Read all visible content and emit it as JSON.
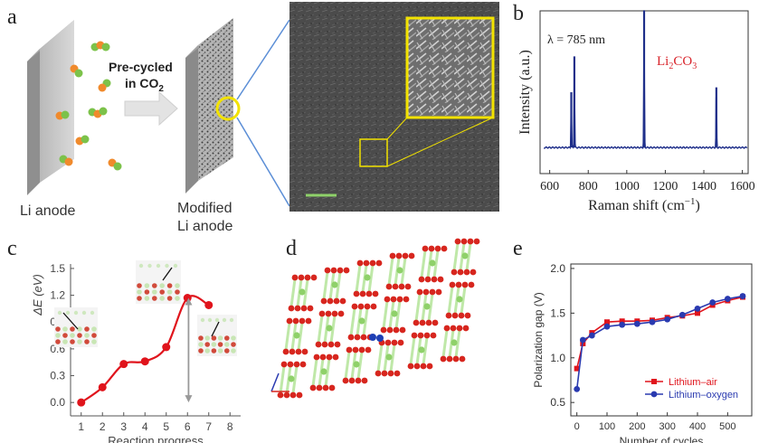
{
  "panel_labels": {
    "a": "a",
    "b": "b",
    "c": "c",
    "d": "d",
    "e": "e"
  },
  "panel_a": {
    "arrow_label_line1": "Pre-cycled",
    "arrow_label_line2": "in CO",
    "arrow_label_sub": "2",
    "left_label": "Li anode",
    "right_label_line1": "Modified",
    "right_label_line2": "Li anode",
    "colors": {
      "particle_orange": "#f08a2c",
      "particle_green": "#7cc24a",
      "highlight": "#f2e200",
      "scalebar": "#8fd16a",
      "connector": "#5b8ed6"
    }
  },
  "chart_data": [
    {
      "type": "line",
      "panel": "b",
      "annotation": "λ = 785 nm",
      "peak_label": "Li2CO3",
      "peak_label_main": "Li",
      "peak_label_sub1": "2",
      "peak_label_mid": "CO",
      "peak_label_sub2": "3",
      "xlabel": "Raman shift (cm",
      "xlabel_sup": "−1",
      "xlabel_end": ")",
      "ylabel": "Intensity (a.u.)",
      "xlim": [
        550,
        1630
      ],
      "ylim": [
        0,
        1
      ],
      "xticks": [
        600,
        800,
        1000,
        1200,
        1400,
        1600
      ],
      "baseline": 0.16,
      "peaks": [
        {
          "x": 712,
          "height": 0.5
        },
        {
          "x": 728,
          "height": 0.72
        },
        {
          "x": 1090,
          "height": 1.0
        },
        {
          "x": 1465,
          "height": 0.53
        }
      ],
      "colors": {
        "line": "#1f2f8a",
        "peak_label": "#d8232a"
      }
    },
    {
      "type": "line",
      "panel": "c",
      "ylabel": "ΔE (eV)",
      "xlabel": "Reaction progress",
      "xlim": [
        0.5,
        8.5
      ],
      "ylim": [
        -0.15,
        1.55
      ],
      "xticks": [
        1,
        2,
        3,
        4,
        5,
        6,
        7,
        8
      ],
      "yticks": [
        "0.0",
        "0.3",
        "0.6",
        "0.9",
        "1.2",
        "1.5"
      ],
      "x": [
        1,
        2,
        3,
        4,
        5,
        6,
        7
      ],
      "y": [
        0.0,
        0.17,
        0.43,
        0.46,
        0.62,
        1.17,
        1.09
      ],
      "barrier_arrow": {
        "x": 6.05,
        "from": 0.0,
        "to": 1.17
      },
      "colors": {
        "line": "#e0141c",
        "arrow": "#999999"
      }
    },
    {
      "type": "line",
      "panel": "e",
      "ylabel": "Polarization gap (V)",
      "xlabel": "Number of cycles",
      "xlim": [
        -20,
        580
      ],
      "ylim": [
        0.35,
        2.05
      ],
      "xticks": [
        0,
        100,
        200,
        300,
        400,
        500
      ],
      "yticks": [
        "0.5",
        "1.0",
        "1.5",
        "2.0"
      ],
      "x": [
        0,
        20,
        50,
        100,
        150,
        200,
        250,
        300,
        350,
        400,
        450,
        500,
        550
      ],
      "series": [
        {
          "name": "Lithium–air",
          "values": [
            0.88,
            1.16,
            1.28,
            1.4,
            1.41,
            1.41,
            1.42,
            1.45,
            1.47,
            1.5,
            1.59,
            1.64,
            1.68
          ]
        },
        {
          "name": "Lithium–oxygen",
          "values": [
            0.65,
            1.2,
            1.25,
            1.35,
            1.37,
            1.38,
            1.4,
            1.43,
            1.48,
            1.55,
            1.62,
            1.66,
            1.69
          ]
        }
      ],
      "legend_position": "bottom-right",
      "colors": {
        "Lithium–air": "#e0141c",
        "Lithium–oxygen": "#2a3ab0"
      }
    }
  ]
}
